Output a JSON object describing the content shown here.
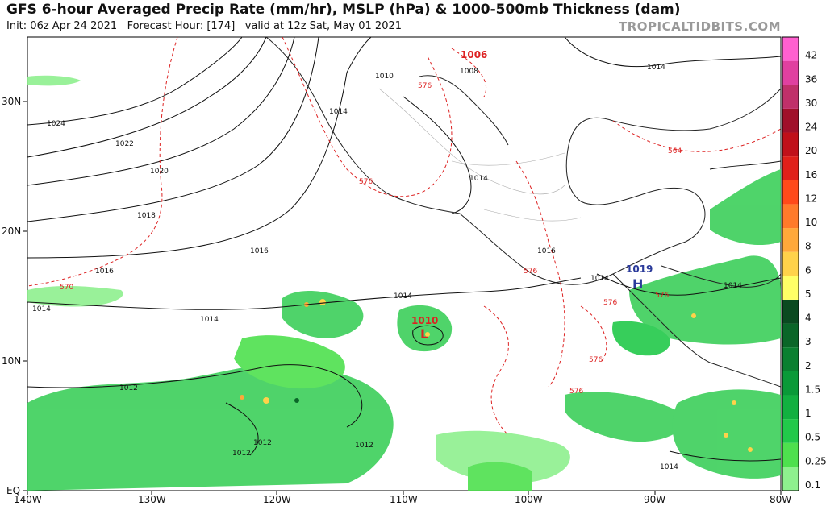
{
  "title": "GFS 6-hour Averaged Precip Rate (mm/hr), MSLP (hPa) & 1000-500mb Thickness (dam)",
  "subtitle": {
    "init": "Init: 06z Apr 24 2021",
    "forecast": "Forecast Hour: [174]",
    "valid": "valid at 12z Sat, May 01 2021"
  },
  "brand": "TROPICALTIDBITS.COM",
  "axes": {
    "lon_labels": [
      "140W",
      "130W",
      "120W",
      "110W",
      "100W",
      "90W",
      "80W"
    ],
    "lat_labels": [
      "EQ",
      "10N",
      "20N",
      "30N"
    ]
  },
  "colorbar": {
    "labels": [
      "0.1",
      "0.25",
      "0.5",
      "1",
      "1.5",
      "2",
      "3",
      "4",
      "5",
      "6",
      "8",
      "10",
      "12",
      "16",
      "20",
      "24",
      "30",
      "36",
      "42"
    ],
    "colors": [
      "#8ef08e",
      "#4ee04e",
      "#22c94a",
      "#12b040",
      "#0a9a38",
      "#0a8030",
      "#0a6628",
      "#0a4a20",
      "#ffff66",
      "#ffd24a",
      "#ffa83a",
      "#ff7a2a",
      "#ff4a1a",
      "#e0201a",
      "#c0101a",
      "#a0102a",
      "#c0306a",
      "#e040a0",
      "#ff60d0"
    ]
  },
  "pressure_centers": [
    {
      "type": "L",
      "value": "1006",
      "color": "#d22"
    },
    {
      "type": "L",
      "value": "1010",
      "color": "#d22"
    },
    {
      "type": "H",
      "value": "1019",
      "color": "#2a3a9a"
    }
  ],
  "isobar_labels": [
    "1024",
    "1022",
    "1020",
    "1018",
    "1016",
    "1016",
    "1014",
    "1014",
    "1014",
    "1014",
    "1012",
    "1012",
    "1012",
    "1010",
    "1008",
    "1014",
    "1016",
    "1014",
    "1014",
    "1014",
    "1012",
    "1014"
  ],
  "thickness_labels": [
    "576",
    "576",
    "570",
    "564",
    "576",
    "576",
    "576",
    "576",
    "576"
  ]
}
